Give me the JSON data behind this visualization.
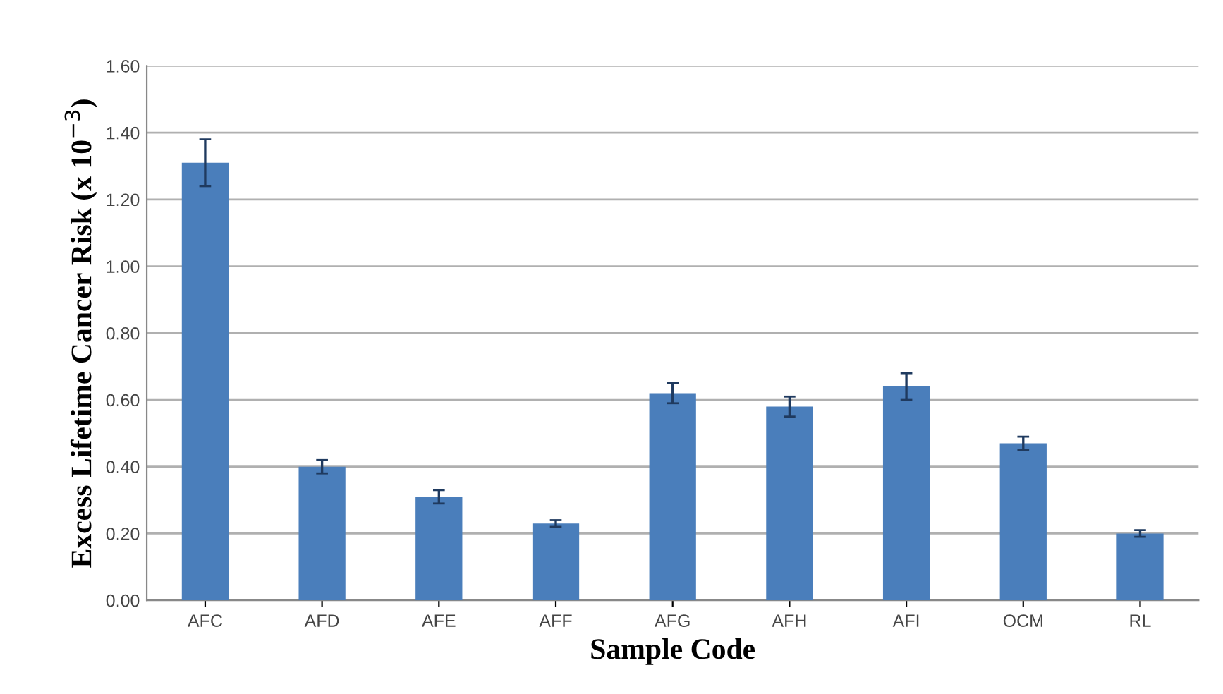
{
  "chart_data": {
    "type": "bar",
    "xlabel": "Sample Code",
    "ylabel": "Excess Lifetime Cancer Risk (x 10$^{−3}$)",
    "categories": [
      "AFC",
      "AFD",
      "AFE",
      "AFF",
      "AFG",
      "AFH",
      "AFI",
      "OCM",
      "RL"
    ],
    "values": [
      1.31,
      0.4,
      0.31,
      0.23,
      0.62,
      0.58,
      0.64,
      0.47,
      0.2
    ],
    "errors": [
      0.07,
      0.02,
      0.02,
      0.01,
      0.03,
      0.03,
      0.04,
      0.02,
      0.01
    ],
    "color": "#4a7ebb",
    "ylim": [
      0,
      1.6
    ],
    "yticks": [
      {
        "value": 0,
        "label": "0.00"
      },
      {
        "value": 0.2,
        "label": "0.20"
      },
      {
        "value": 0.4,
        "label": "0.40"
      },
      {
        "value": 0.6,
        "label": "0.60"
      },
      {
        "value": 0.8,
        "label": "0.80"
      },
      {
        "value": 1.0,
        "label": "1.00"
      },
      {
        "value": 1.2,
        "label": "1.20"
      },
      {
        "value": 1.4,
        "label": "1.40"
      },
      {
        "value": 1.6,
        "label": "1.60"
      }
    ],
    "grid": "y"
  }
}
